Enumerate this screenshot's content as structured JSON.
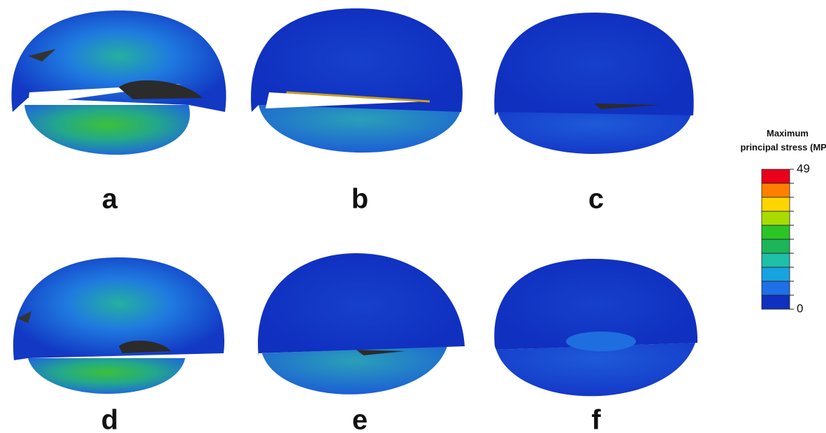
{
  "panels": [
    {
      "label": "a"
    },
    {
      "label": "b"
    },
    {
      "label": "c"
    },
    {
      "label": "d"
    },
    {
      "label": "e"
    },
    {
      "label": "f"
    }
  ],
  "colorbar": {
    "title_lines": [
      "Maximum",
      "principal stress (MPa)"
    ],
    "min": 0,
    "max": 49,
    "colors": [
      "#1030c0",
      "#1f6fe6",
      "#18a3e0",
      "#1fbfa8",
      "#1db55a",
      "#2cc424",
      "#a8dc00",
      "#ffd500",
      "#ff8000",
      "#e8001a"
    ]
  }
}
